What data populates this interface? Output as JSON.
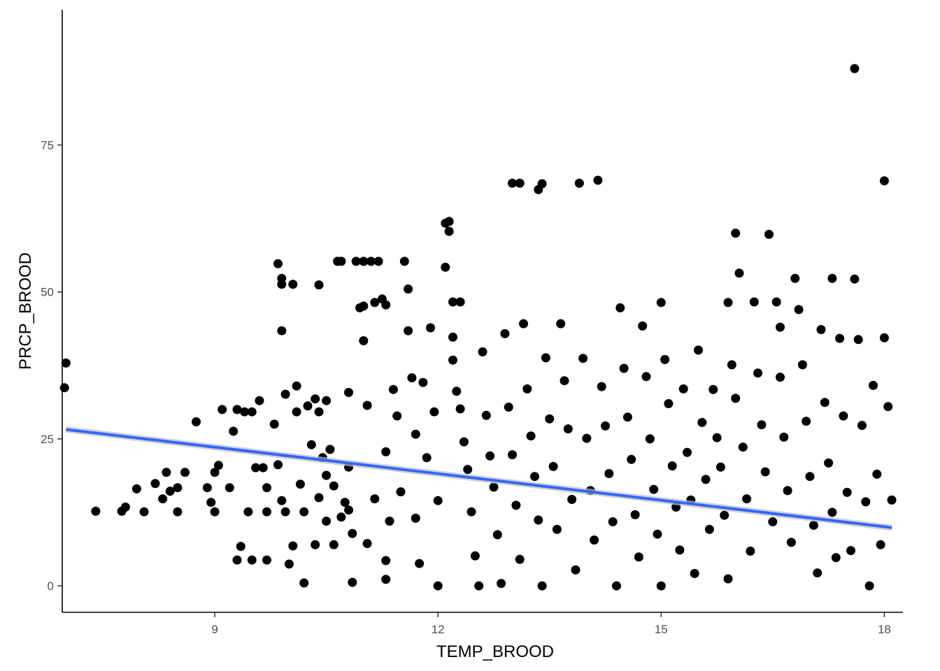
{
  "chart_data": {
    "type": "scatter",
    "title": "",
    "xlabel": "TEMP_BROOD",
    "ylabel": "PRCP_BROOD",
    "xlim": [
      6.95,
      18.25
    ],
    "ylim": [
      -4.5,
      98
    ],
    "x_ticks": [
      9,
      12,
      15,
      18
    ],
    "y_ticks": [
      0,
      25,
      50,
      75
    ],
    "x_tick_labels": [
      "9",
      "12",
      "15",
      "18"
    ],
    "y_tick_labels": [
      "0",
      "25",
      "50",
      "75"
    ],
    "grid": false,
    "legend": "none",
    "point_color": "#000000",
    "trend_line": {
      "method": "linear",
      "color": "#3366ff",
      "x": [
        7.0,
        18.1
      ],
      "y": [
        26.6,
        9.9
      ]
    },
    "points": [
      [
        7.0,
        37.9
      ],
      [
        6.98,
        33.7
      ],
      [
        7.4,
        12.7
      ],
      [
        7.75,
        12.7
      ],
      [
        7.8,
        13.4
      ],
      [
        7.95,
        16.5
      ],
      [
        8.05,
        12.6
      ],
      [
        8.2,
        17.4
      ],
      [
        8.3,
        14.8
      ],
      [
        8.35,
        19.3
      ],
      [
        8.4,
        16.1
      ],
      [
        8.5,
        16.7
      ],
      [
        8.5,
        12.6
      ],
      [
        8.6,
        19.3
      ],
      [
        8.75,
        27.9
      ],
      [
        8.9,
        16.7
      ],
      [
        8.95,
        14.2
      ],
      [
        9.0,
        19.3
      ],
      [
        9.0,
        12.6
      ],
      [
        9.05,
        20.5
      ],
      [
        9.1,
        30.0
      ],
      [
        9.2,
        16.7
      ],
      [
        9.25,
        26.3
      ],
      [
        9.3,
        30.0
      ],
      [
        9.3,
        4.4
      ],
      [
        9.35,
        6.7
      ],
      [
        9.4,
        29.6
      ],
      [
        9.45,
        12.6
      ],
      [
        9.5,
        29.6
      ],
      [
        9.5,
        4.4
      ],
      [
        9.55,
        20.1
      ],
      [
        9.6,
        31.5
      ],
      [
        9.65,
        20.1
      ],
      [
        9.7,
        16.7
      ],
      [
        9.7,
        12.6
      ],
      [
        9.7,
        4.4
      ],
      [
        9.8,
        27.5
      ],
      [
        9.85,
        20.6
      ],
      [
        9.9,
        14.5
      ],
      [
        9.95,
        12.6
      ],
      [
        10.0,
        3.7
      ],
      [
        9.85,
        54.8
      ],
      [
        9.9,
        52.3
      ],
      [
        9.9,
        51.3
      ],
      [
        10.05,
        51.3
      ],
      [
        9.9,
        43.4
      ],
      [
        9.95,
        32.6
      ],
      [
        10.05,
        6.8
      ],
      [
        10.1,
        34.0
      ],
      [
        10.1,
        29.6
      ],
      [
        10.15,
        17.3
      ],
      [
        10.2,
        12.6
      ],
      [
        10.2,
        0.5
      ],
      [
        10.25,
        30.6
      ],
      [
        10.3,
        24.0
      ],
      [
        10.35,
        31.8
      ],
      [
        10.35,
        7.0
      ],
      [
        10.4,
        29.6
      ],
      [
        10.4,
        15.0
      ],
      [
        10.4,
        51.2
      ],
      [
        10.45,
        21.8
      ],
      [
        10.5,
        31.5
      ],
      [
        10.5,
        18.8
      ],
      [
        10.5,
        11.0
      ],
      [
        10.55,
        23.2
      ],
      [
        10.6,
        17.0
      ],
      [
        10.6,
        7.0
      ],
      [
        10.65,
        55.2
      ],
      [
        10.7,
        55.2
      ],
      [
        10.7,
        11.7
      ],
      [
        10.75,
        14.2
      ],
      [
        10.8,
        32.9
      ],
      [
        10.8,
        20.2
      ],
      [
        10.8,
        12.9
      ],
      [
        10.85,
        8.9
      ],
      [
        10.85,
        0.6
      ],
      [
        10.9,
        55.2
      ],
      [
        10.95,
        47.3
      ],
      [
        11.0,
        55.2
      ],
      [
        11.0,
        47.6
      ],
      [
        11.0,
        41.7
      ],
      [
        11.05,
        30.7
      ],
      [
        11.05,
        7.2
      ],
      [
        11.1,
        55.2
      ],
      [
        11.15,
        48.2
      ],
      [
        11.15,
        14.8
      ],
      [
        11.2,
        55.2
      ],
      [
        11.25,
        48.8
      ],
      [
        11.3,
        47.8
      ],
      [
        11.35,
        11.0
      ],
      [
        11.3,
        22.8
      ],
      [
        11.3,
        4.3
      ],
      [
        11.3,
        1.1
      ],
      [
        11.4,
        33.4
      ],
      [
        11.45,
        28.9
      ],
      [
        11.5,
        16.0
      ],
      [
        11.55,
        55.2
      ],
      [
        11.6,
        50.5
      ],
      [
        11.6,
        43.4
      ],
      [
        11.65,
        35.4
      ],
      [
        11.7,
        25.8
      ],
      [
        11.7,
        11.5
      ],
      [
        11.75,
        3.8
      ],
      [
        11.8,
        34.6
      ],
      [
        11.85,
        21.8
      ],
      [
        11.9,
        43.9
      ],
      [
        11.95,
        29.6
      ],
      [
        12.0,
        14.5
      ],
      [
        12.0,
        0.0
      ],
      [
        12.1,
        61.7
      ],
      [
        12.15,
        62.0
      ],
      [
        12.15,
        60.3
      ],
      [
        12.1,
        54.2
      ],
      [
        12.2,
        48.3
      ],
      [
        12.3,
        48.3
      ],
      [
        12.2,
        42.3
      ],
      [
        12.2,
        38.4
      ],
      [
        12.25,
        33.1
      ],
      [
        12.3,
        30.1
      ],
      [
        12.35,
        24.5
      ],
      [
        12.4,
        19.8
      ],
      [
        12.45,
        12.6
      ],
      [
        12.5,
        5.1
      ],
      [
        12.55,
        0.0
      ],
      [
        12.6,
        39.8
      ],
      [
        12.65,
        29.0
      ],
      [
        12.7,
        22.1
      ],
      [
        12.75,
        16.8
      ],
      [
        12.8,
        8.7
      ],
      [
        12.85,
        0.4
      ],
      [
        12.9,
        42.9
      ],
      [
        12.95,
        30.4
      ],
      [
        13.0,
        68.5
      ],
      [
        13.1,
        68.5
      ],
      [
        13.0,
        22.3
      ],
      [
        13.05,
        13.7
      ],
      [
        13.1,
        4.5
      ],
      [
        13.15,
        44.6
      ],
      [
        13.2,
        33.5
      ],
      [
        13.25,
        25.5
      ],
      [
        13.3,
        18.6
      ],
      [
        13.35,
        11.2
      ],
      [
        13.35,
        67.4
      ],
      [
        13.4,
        68.4
      ],
      [
        13.4,
        0.0
      ],
      [
        13.45,
        38.8
      ],
      [
        13.5,
        28.4
      ],
      [
        13.55,
        20.3
      ],
      [
        13.6,
        9.6
      ],
      [
        13.65,
        44.6
      ],
      [
        13.7,
        34.9
      ],
      [
        13.75,
        26.7
      ],
      [
        13.8,
        14.7
      ],
      [
        13.85,
        2.7
      ],
      [
        13.9,
        68.5
      ],
      [
        13.95,
        38.7
      ],
      [
        14.0,
        25.1
      ],
      [
        14.05,
        16.2
      ],
      [
        14.1,
        7.8
      ],
      [
        14.15,
        69.0
      ],
      [
        14.2,
        33.9
      ],
      [
        14.25,
        27.2
      ],
      [
        14.3,
        19.1
      ],
      [
        14.35,
        10.9
      ],
      [
        14.4,
        0.0
      ],
      [
        14.45,
        47.3
      ],
      [
        14.5,
        37.0
      ],
      [
        14.55,
        28.7
      ],
      [
        14.6,
        21.5
      ],
      [
        14.65,
        12.1
      ],
      [
        14.7,
        4.9
      ],
      [
        14.75,
        44.2
      ],
      [
        14.8,
        35.6
      ],
      [
        14.85,
        25.0
      ],
      [
        14.9,
        16.4
      ],
      [
        14.95,
        8.8
      ],
      [
        15.0,
        0.0
      ],
      [
        15.0,
        48.2
      ],
      [
        15.05,
        38.5
      ],
      [
        15.1,
        31.0
      ],
      [
        15.15,
        20.4
      ],
      [
        15.2,
        13.4
      ],
      [
        15.25,
        6.1
      ],
      [
        15.3,
        33.5
      ],
      [
        15.35,
        22.7
      ],
      [
        15.4,
        14.6
      ],
      [
        15.45,
        2.1
      ],
      [
        15.5,
        40.1
      ],
      [
        15.55,
        27.8
      ],
      [
        15.6,
        18.1
      ],
      [
        15.65,
        9.6
      ],
      [
        15.7,
        33.4
      ],
      [
        15.75,
        25.2
      ],
      [
        15.8,
        20.2
      ],
      [
        15.85,
        12.0
      ],
      [
        15.9,
        1.2
      ],
      [
        15.9,
        48.2
      ],
      [
        15.95,
        37.6
      ],
      [
        16.0,
        60.0
      ],
      [
        16.0,
        31.9
      ],
      [
        16.05,
        53.2
      ],
      [
        16.1,
        23.6
      ],
      [
        16.15,
        14.8
      ],
      [
        16.2,
        5.9
      ],
      [
        16.25,
        48.3
      ],
      [
        16.3,
        36.2
      ],
      [
        16.35,
        27.4
      ],
      [
        16.4,
        19.4
      ],
      [
        16.45,
        59.8
      ],
      [
        16.5,
        10.9
      ],
      [
        16.55,
        48.3
      ],
      [
        16.6,
        44.0
      ],
      [
        16.6,
        35.5
      ],
      [
        16.65,
        25.3
      ],
      [
        16.7,
        16.2
      ],
      [
        16.75,
        7.4
      ],
      [
        16.8,
        52.3
      ],
      [
        16.85,
        47.0
      ],
      [
        16.9,
        37.6
      ],
      [
        16.95,
        28.0
      ],
      [
        17.0,
        18.6
      ],
      [
        17.05,
        10.3
      ],
      [
        17.1,
        2.2
      ],
      [
        17.15,
        43.6
      ],
      [
        17.2,
        31.2
      ],
      [
        17.25,
        20.9
      ],
      [
        17.3,
        12.5
      ],
      [
        17.3,
        52.3
      ],
      [
        17.35,
        4.8
      ],
      [
        17.4,
        42.1
      ],
      [
        17.45,
        28.9
      ],
      [
        17.5,
        15.9
      ],
      [
        17.55,
        6.0
      ],
      [
        17.6,
        88.0
      ],
      [
        17.6,
        52.2
      ],
      [
        17.65,
        41.9
      ],
      [
        17.7,
        27.3
      ],
      [
        17.75,
        14.3
      ],
      [
        17.8,
        0.0
      ],
      [
        17.85,
        34.1
      ],
      [
        17.9,
        19.0
      ],
      [
        17.95,
        7.0
      ],
      [
        18.0,
        68.9
      ],
      [
        18.0,
        42.2
      ],
      [
        18.05,
        30.5
      ],
      [
        18.1,
        14.6
      ]
    ]
  }
}
